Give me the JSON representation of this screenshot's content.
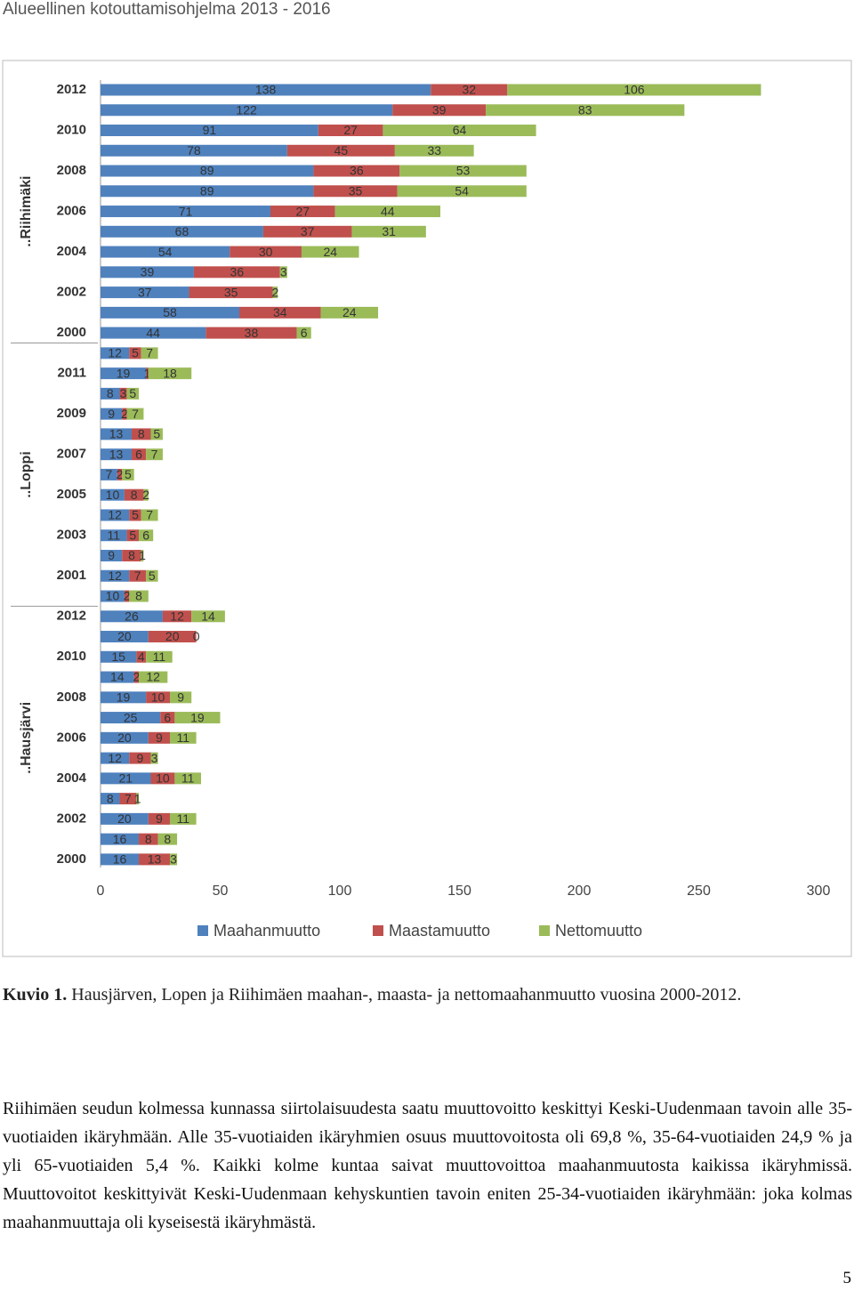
{
  "header": {
    "title": "Alueellinen kotouttamisohjelma 2013 - 2016"
  },
  "chart_data": {
    "type": "bar",
    "orientation": "horizontal",
    "stacked": true,
    "groups": [
      "..Riihimäki",
      "..Loppi",
      "..Hausjärvi"
    ],
    "categories": [
      "2012",
      null,
      "2010",
      null,
      "2008",
      null,
      "2006",
      null,
      "2004",
      null,
      "2002",
      null,
      "2000",
      null,
      "2011",
      null,
      "2009",
      null,
      "2007",
      null,
      "2005",
      null,
      "2003",
      null,
      "2001",
      null,
      "2012",
      null,
      "2010",
      null,
      "2008",
      null,
      "2006",
      null,
      "2004",
      null,
      "2002",
      null,
      "2000"
    ],
    "series": [
      {
        "name": "Maahanmuutto",
        "color": "#4f81bd",
        "values": [
          138,
          122,
          91,
          78,
          89,
          89,
          71,
          68,
          54,
          39,
          37,
          58,
          44,
          12,
          19,
          8,
          9,
          13,
          13,
          7,
          10,
          12,
          11,
          9,
          12,
          10,
          26,
          20,
          15,
          14,
          19,
          25,
          20,
          12,
          21,
          8,
          20,
          16,
          16
        ]
      },
      {
        "name": "Maastamuutto",
        "color": "#c0504d",
        "values": [
          32,
          39,
          27,
          45,
          36,
          35,
          27,
          37,
          30,
          36,
          35,
          34,
          38,
          5,
          1,
          3,
          2,
          8,
          6,
          2,
          8,
          5,
          5,
          8,
          7,
          2,
          12,
          20,
          4,
          2,
          10,
          6,
          9,
          9,
          10,
          7,
          9,
          8,
          13
        ]
      },
      {
        "name": "Nettomuutto",
        "color": "#9bbb59",
        "values": [
          106,
          83,
          64,
          33,
          53,
          54,
          44,
          31,
          24,
          3,
          2,
          24,
          6,
          7,
          18,
          5,
          7,
          5,
          7,
          5,
          2,
          7,
          6,
          1,
          5,
          8,
          14,
          0,
          11,
          12,
          9,
          19,
          11,
          3,
          11,
          1,
          11,
          8,
          3
        ]
      }
    ],
    "xlim": [
      0,
      300
    ],
    "xticks": [
      0,
      50,
      100,
      150,
      200,
      250,
      300
    ],
    "grid": false,
    "legend": "bottom"
  },
  "caption": {
    "label": "Kuvio 1.",
    "text": "Hausjärven, Lopen ja Riihimäen  maahan-, maasta- ja nettomaahanmuutto vuosina 2000-2012."
  },
  "paragraph": "Riihimäen seudun kolmessa kunnassa siirtolaisuudesta saatu muuttovoitto keskittyi Keski-Uudenmaan tavoin alle 35-vuotiaiden ikäryhmään. Alle 35-vuotiaiden ikäryhmien osuus muuttovoitosta oli 69,8 %, 35-64-vuotiaiden 24,9 % ja yli 65-vuotiaiden 5,4 %. Kaikki kolme kuntaa saivat muuttovoittoa maahanmuutosta kaikissa ikäryhmissä. Muuttovoitot keskittyivät Keski-Uudenmaan kehyskuntien tavoin eniten 25-34-vuotiaiden ikäryhmään: joka kolmas maahanmuuttaja oli kyseisestä ikäryhmästä.",
  "page_number": "5"
}
